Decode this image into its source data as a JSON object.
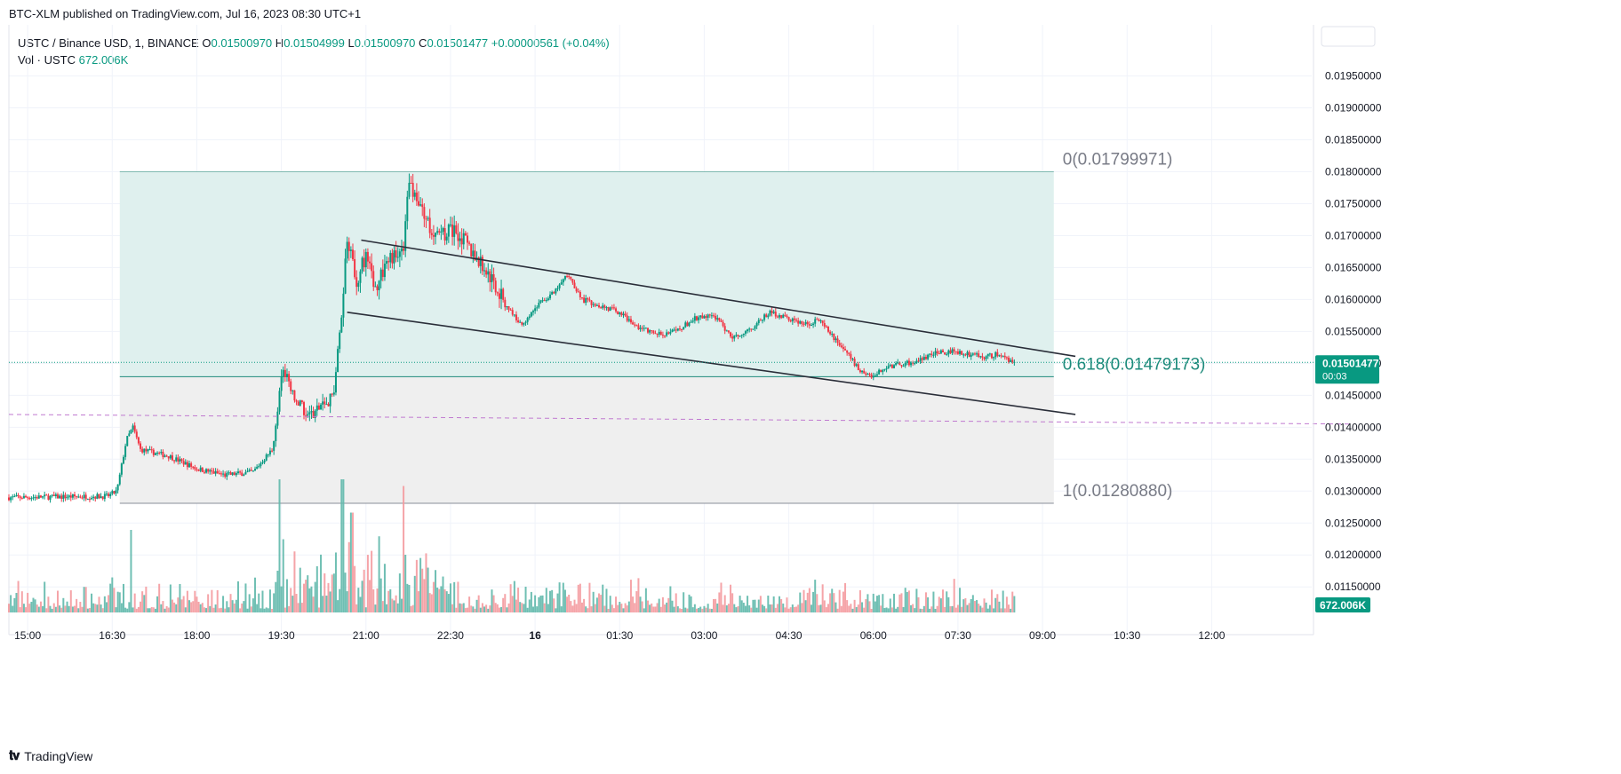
{
  "header": {
    "publisher": "BTC-XLM published on TradingView.com, Jul 16, 2023 08:30 UTC+1"
  },
  "legend": {
    "symbol": "USTC / Binance USD, 1, BINANCE",
    "o_label": "O",
    "o_val": "0.01500970",
    "h_label": "H",
    "h_val": "0.01504999",
    "l_label": "L",
    "l_val": "0.01500970",
    "c_label": "C",
    "c_val": "0.01501477",
    "change": "+0.00000561 (+0.04%)",
    "vol_label": "Vol · USTC",
    "vol_val": "672.006K"
  },
  "footer": {
    "brand": "TradingView"
  },
  "colors": {
    "up": "#089981",
    "down": "#f23645",
    "fib_upper_fill": "#dff0ee",
    "fib_lower_fill": "#efefef",
    "fib_line": "#1e8a7b",
    "dashed": "#c07ad0",
    "channel": "#2a2e39",
    "axis_text": "#131722"
  },
  "chart_data": {
    "type": "candlestick",
    "timeframe": "1",
    "y_axis": {
      "range": [
        0.0111,
        0.0203
      ],
      "ticks": [
        "0.01950000",
        "0.01900000",
        "0.01850000",
        "0.01800000",
        "0.01750000",
        "0.01700000",
        "0.01650000",
        "0.01600000",
        "0.01550000",
        "0.01500000",
        "0.01450000",
        "0.01400000",
        "0.01350000",
        "0.01300000",
        "0.01250000",
        "0.01200000",
        "0.01150000"
      ],
      "position": "right"
    },
    "x_axis": {
      "range": [
        "15:00 -0:20",
        "12:00 +2:30"
      ],
      "ticks": [
        "15:00",
        "16:30",
        "18:00",
        "19:30",
        "21:00",
        "22:30",
        "16",
        "01:30",
        "03:00",
        "04:30",
        "06:00",
        "07:30",
        "09:00",
        "10:30",
        "12:00"
      ]
    },
    "price_path": [
      [
        "14:40",
        0.0129
      ],
      [
        "16:25",
        0.01292
      ],
      [
        "16:35",
        0.013
      ],
      [
        "16:45",
        0.0138
      ],
      [
        "16:52",
        0.014
      ],
      [
        "17:00",
        0.01365
      ],
      [
        "17:30",
        0.01355
      ],
      [
        "18:00",
        0.01335
      ],
      [
        "18:30",
        0.01325
      ],
      [
        "19:00",
        0.0133
      ],
      [
        "19:20",
        0.01365
      ],
      [
        "19:28",
        0.0145
      ],
      [
        "19:32",
        0.0149
      ],
      [
        "19:45",
        0.0144
      ],
      [
        "20:00",
        0.0142
      ],
      [
        "20:15",
        0.01435
      ],
      [
        "20:25",
        0.0145
      ],
      [
        "20:33",
        0.0156
      ],
      [
        "20:40",
        0.017
      ],
      [
        "20:50",
        0.0163
      ],
      [
        "21:00",
        0.0167
      ],
      [
        "21:10",
        0.0162
      ],
      [
        "21:25",
        0.01665
      ],
      [
        "21:40",
        0.0167
      ],
      [
        "21:45",
        0.0178
      ],
      [
        "21:55",
        0.0176
      ],
      [
        "22:05",
        0.0172
      ],
      [
        "22:20",
        0.017
      ],
      [
        "22:35",
        0.0171
      ],
      [
        "22:50",
        0.0168
      ],
      [
        "23:10",
        0.0164
      ],
      [
        "23:30",
        0.0159
      ],
      [
        "23:45",
        0.0156
      ],
      [
        "00:05",
        0.01595
      ],
      [
        "00:20",
        0.0161
      ],
      [
        "00:35",
        0.0164
      ],
      [
        "00:50",
        0.016
      ],
      [
        "01:10",
        0.0159
      ],
      [
        "01:30",
        0.0158
      ],
      [
        "01:45",
        0.0156
      ],
      [
        "02:10",
        0.01545
      ],
      [
        "02:30",
        0.0155
      ],
      [
        "02:50",
        0.0157
      ],
      [
        "03:10",
        0.01575
      ],
      [
        "03:30",
        0.0154
      ],
      [
        "03:50",
        0.01555
      ],
      [
        "04:10",
        0.0158
      ],
      [
        "04:30",
        0.0157
      ],
      [
        "04:50",
        0.0156
      ],
      [
        "05:00",
        0.0157
      ],
      [
        "05:15",
        0.01545
      ],
      [
        "05:30",
        0.0152
      ],
      [
        "05:45",
        0.0149
      ],
      [
        "06:00",
        0.0148
      ],
      [
        "06:15",
        0.01495
      ],
      [
        "06:35",
        0.015
      ],
      [
        "06:50",
        0.01505
      ],
      [
        "07:05",
        0.01515
      ],
      [
        "07:25",
        0.0152
      ],
      [
        "07:40",
        0.01515
      ],
      [
        "08:00",
        0.0151
      ],
      [
        "08:15",
        0.01515
      ],
      [
        "08:25",
        0.01505
      ],
      [
        "08:30",
        0.01501
      ]
    ],
    "volume": {
      "last": "672.006K",
      "spikes": [
        [
          "16:50",
          0.62
        ],
        [
          "19:28",
          1.0
        ],
        [
          "20:35",
          1.0
        ],
        [
          "21:40",
          0.95
        ],
        [
          "19:32",
          0.55
        ],
        [
          "20:45",
          0.75
        ]
      ]
    },
    "fibonacci": [
      {
        "ratio": "0",
        "price": 0.01799971,
        "label": "0(0.01799971)"
      },
      {
        "ratio": "0.618",
        "price": 0.01479173,
        "label": "0.618(0.01479173)"
      },
      {
        "ratio": "1",
        "price": 0.0128088,
        "label": "1(0.01280880)"
      }
    ],
    "fib_time_range": [
      "16:38",
      "09:12"
    ],
    "channel": {
      "upper": [
        [
          "20:55",
          0.01693
        ],
        [
          "09:35",
          0.01511
        ]
      ],
      "lower": [
        [
          "20:40",
          0.0158
        ],
        [
          "09:35",
          0.0142
        ]
      ]
    },
    "horizontal_dashed": {
      "start": [
        "14:40",
        0.0142
      ],
      "end": [
        "12:00 +2:28",
        0.01405
      ]
    },
    "last_price": {
      "value": "0.01501477",
      "countdown": "00:03",
      "numeric": 0.01501477
    },
    "volume_label": "672.006K"
  }
}
